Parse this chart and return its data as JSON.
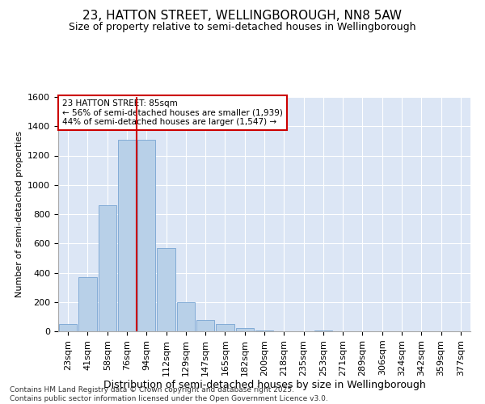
{
  "title": "23, HATTON STREET, WELLINGBOROUGH, NN8 5AW",
  "subtitle": "Size of property relative to semi-detached houses in Wellingborough",
  "xlabel": "Distribution of semi-detached houses by size in Wellingborough",
  "ylabel": "Number of semi-detached properties",
  "categories": [
    "23sqm",
    "41sqm",
    "58sqm",
    "76sqm",
    "94sqm",
    "112sqm",
    "129sqm",
    "147sqm",
    "165sqm",
    "182sqm",
    "200sqm",
    "218sqm",
    "235sqm",
    "253sqm",
    "271sqm",
    "289sqm",
    "306sqm",
    "324sqm",
    "342sqm",
    "359sqm",
    "377sqm"
  ],
  "values": [
    50,
    370,
    860,
    1310,
    1310,
    570,
    200,
    75,
    50,
    20,
    5,
    0,
    0,
    5,
    0,
    0,
    0,
    0,
    0,
    0,
    0
  ],
  "bar_color": "#b8d0e8",
  "bar_edge_color": "#6699cc",
  "vline_x": 3.5,
  "vline_color": "#cc0000",
  "annotation_text": "23 HATTON STREET: 85sqm\n← 56% of semi-detached houses are smaller (1,939)\n44% of semi-detached houses are larger (1,547) →",
  "annotation_box_color": "#cc0000",
  "ylim": [
    0,
    1600
  ],
  "yticks": [
    0,
    200,
    400,
    600,
    800,
    1000,
    1200,
    1400,
    1600
  ],
  "background_color": "#dce6f5",
  "grid_color": "#ffffff",
  "footnote": "Contains HM Land Registry data © Crown copyright and database right 2025.\nContains public sector information licensed under the Open Government Licence v3.0.",
  "title_fontsize": 11,
  "subtitle_fontsize": 9,
  "xlabel_fontsize": 9,
  "ylabel_fontsize": 8,
  "tick_fontsize": 8,
  "footnote_fontsize": 6.5
}
